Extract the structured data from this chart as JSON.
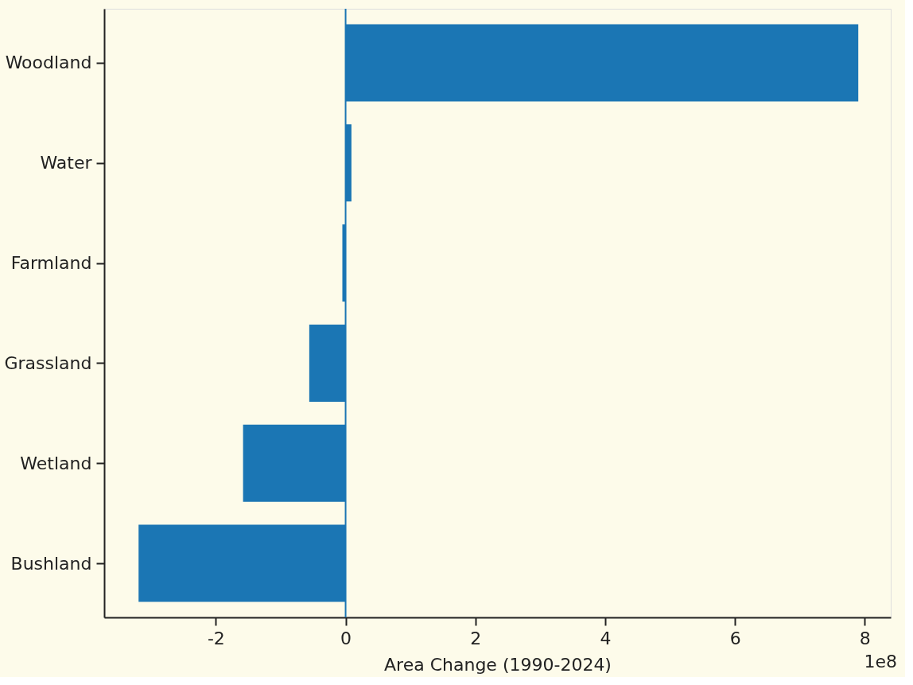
{
  "chart_data": {
    "type": "bar",
    "orientation": "horizontal",
    "categories": [
      "Woodland",
      "Water",
      "Farmland",
      "Grassland",
      "Wetland",
      "Bushland"
    ],
    "values": [
      7.9,
      0.09,
      -0.05,
      -0.56,
      -1.58,
      -3.19
    ],
    "color": "#1b76b4",
    "xlabel": "Area Change (1990-2024)",
    "xlim": [
      -3.72,
      8.4
    ],
    "xticks": [
      -2,
      0,
      2,
      4,
      6,
      8
    ],
    "ref_lines": [
      {
        "axis": "x",
        "value": 0,
        "color": "#1b76b4"
      }
    ],
    "annotations": [
      "1e8"
    ],
    "grid": false
  }
}
